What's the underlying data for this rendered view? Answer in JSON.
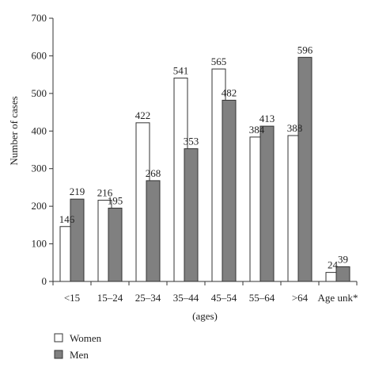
{
  "chart_data": {
    "type": "bar",
    "categories": [
      "<15",
      "15–24",
      "25–34",
      "35–44",
      "45–54",
      "55–64",
      ">64",
      "Age unk*"
    ],
    "series": [
      {
        "name": "Women",
        "values": [
          146,
          216,
          422,
          541,
          565,
          384,
          388,
          24
        ],
        "color": "#ffffff"
      },
      {
        "name": "Men",
        "values": [
          219,
          195,
          268,
          353,
          482,
          413,
          596,
          39
        ],
        "color": "#808080"
      }
    ],
    "title": "",
    "xlabel": "(ages)",
    "ylabel": "Number of cases",
    "ylim": [
      0,
      700
    ],
    "yticks": [
      0,
      100,
      200,
      300,
      400,
      500,
      600,
      700
    ],
    "grid": false,
    "legend_position": "bottom-left"
  }
}
